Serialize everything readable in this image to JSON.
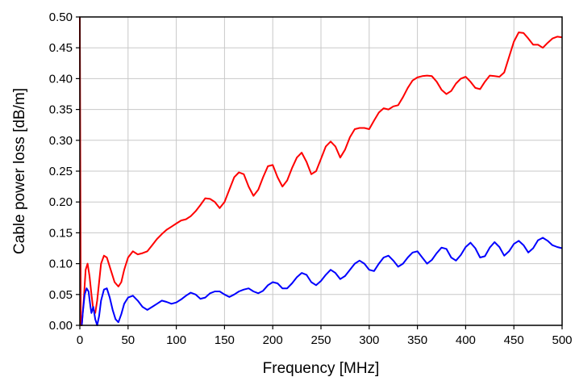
{
  "chart_data": {
    "type": "line",
    "title": "",
    "xlabel": "Frequency [MHz]",
    "ylabel": "Cable power loss [dB/m]",
    "xlim": [
      0,
      500
    ],
    "ylim": [
      0,
      0.5
    ],
    "x_ticks": [
      0,
      50,
      100,
      150,
      200,
      250,
      300,
      350,
      400,
      450,
      500
    ],
    "x_tick_labels": [
      "0",
      "50",
      "100",
      "150",
      "200",
      "250",
      "300",
      "350",
      "400",
      "450",
      "500"
    ],
    "y_ticks": [
      0,
      0.05,
      0.1,
      0.15,
      0.2,
      0.25,
      0.3,
      0.35,
      0.4,
      0.45,
      0.5
    ],
    "y_tick_labels": [
      "0.00",
      "0.05",
      "0.10",
      "0.15",
      "0.20",
      "0.25",
      "0.30",
      "0.35",
      "0.40",
      "0.45",
      "0.50"
    ],
    "grid": true,
    "legend": "none",
    "series": [
      {
        "color": "#ff0000",
        "x": [
          0,
          1,
          2,
          4,
          6,
          8,
          10,
          12,
          14,
          16,
          18,
          20,
          22,
          25,
          28,
          30,
          33,
          36,
          40,
          43,
          46,
          50,
          55,
          60,
          65,
          70,
          75,
          80,
          85,
          90,
          95,
          100,
          105,
          110,
          115,
          120,
          125,
          130,
          135,
          140,
          145,
          150,
          155,
          160,
          165,
          170,
          175,
          180,
          185,
          190,
          195,
          200,
          205,
          210,
          215,
          220,
          225,
          230,
          235,
          240,
          245,
          250,
          255,
          260,
          265,
          270,
          275,
          280,
          285,
          290,
          295,
          300,
          305,
          310,
          315,
          320,
          325,
          330,
          335,
          340,
          345,
          350,
          355,
          360,
          365,
          370,
          375,
          380,
          385,
          390,
          395,
          400,
          405,
          410,
          415,
          420,
          425,
          430,
          435,
          440,
          445,
          450,
          455,
          460,
          465,
          470,
          475,
          480,
          485,
          490,
          495,
          500
        ],
        "y": [
          0.5,
          0.0,
          0.0,
          0.04,
          0.09,
          0.1,
          0.08,
          0.05,
          0.025,
          0.02,
          0.04,
          0.07,
          0.1,
          0.113,
          0.11,
          0.1,
          0.085,
          0.07,
          0.063,
          0.07,
          0.09,
          0.11,
          0.12,
          0.115,
          0.117,
          0.12,
          0.13,
          0.14,
          0.148,
          0.155,
          0.16,
          0.165,
          0.17,
          0.172,
          0.177,
          0.185,
          0.195,
          0.206,
          0.205,
          0.2,
          0.19,
          0.2,
          0.22,
          0.24,
          0.248,
          0.245,
          0.225,
          0.21,
          0.22,
          0.24,
          0.258,
          0.26,
          0.24,
          0.225,
          0.235,
          0.255,
          0.272,
          0.28,
          0.265,
          0.245,
          0.25,
          0.27,
          0.29,
          0.298,
          0.29,
          0.272,
          0.285,
          0.305,
          0.318,
          0.32,
          0.32,
          0.318,
          0.332,
          0.345,
          0.352,
          0.35,
          0.355,
          0.357,
          0.37,
          0.385,
          0.397,
          0.402,
          0.404,
          0.405,
          0.404,
          0.395,
          0.382,
          0.375,
          0.38,
          0.392,
          0.4,
          0.403,
          0.395,
          0.385,
          0.383,
          0.395,
          0.405,
          0.404,
          0.403,
          0.41,
          0.435,
          0.46,
          0.475,
          0.474,
          0.465,
          0.455,
          0.455,
          0.45,
          0.458,
          0.465,
          0.468,
          0.467
        ]
      },
      {
        "color": "#0000ff",
        "x": [
          2,
          3,
          5,
          7,
          9,
          11,
          12,
          14,
          16,
          18,
          20,
          22,
          25,
          28,
          31,
          34,
          37,
          40,
          43,
          46,
          50,
          55,
          60,
          65,
          70,
          75,
          80,
          85,
          90,
          95,
          100,
          105,
          110,
          115,
          120,
          125,
          130,
          135,
          140,
          145,
          150,
          155,
          160,
          165,
          170,
          175,
          180,
          185,
          190,
          195,
          200,
          205,
          210,
          215,
          220,
          225,
          230,
          235,
          240,
          245,
          250,
          255,
          260,
          265,
          270,
          275,
          280,
          285,
          290,
          295,
          300,
          305,
          310,
          315,
          320,
          325,
          330,
          335,
          340,
          345,
          350,
          355,
          360,
          365,
          370,
          375,
          380,
          385,
          390,
          395,
          400,
          405,
          410,
          415,
          420,
          425,
          430,
          435,
          440,
          445,
          450,
          455,
          460,
          465,
          470,
          475,
          480,
          485,
          490,
          495,
          500
        ],
        "y": [
          0.0,
          0.02,
          0.05,
          0.06,
          0.055,
          0.03,
          0.02,
          0.03,
          0.01,
          0.0,
          0.015,
          0.04,
          0.058,
          0.06,
          0.045,
          0.025,
          0.01,
          0.005,
          0.018,
          0.035,
          0.045,
          0.048,
          0.04,
          0.03,
          0.025,
          0.03,
          0.035,
          0.04,
          0.038,
          0.035,
          0.037,
          0.042,
          0.048,
          0.053,
          0.05,
          0.043,
          0.045,
          0.052,
          0.055,
          0.055,
          0.05,
          0.046,
          0.05,
          0.055,
          0.058,
          0.06,
          0.055,
          0.052,
          0.056,
          0.065,
          0.07,
          0.068,
          0.06,
          0.06,
          0.068,
          0.078,
          0.085,
          0.082,
          0.07,
          0.065,
          0.072,
          0.082,
          0.09,
          0.085,
          0.075,
          0.08,
          0.09,
          0.1,
          0.105,
          0.1,
          0.09,
          0.088,
          0.1,
          0.11,
          0.113,
          0.105,
          0.095,
          0.1,
          0.11,
          0.118,
          0.12,
          0.11,
          0.1,
          0.106,
          0.117,
          0.126,
          0.124,
          0.11,
          0.105,
          0.114,
          0.127,
          0.134,
          0.125,
          0.11,
          0.112,
          0.126,
          0.135,
          0.127,
          0.113,
          0.12,
          0.132,
          0.137,
          0.13,
          0.118,
          0.125,
          0.138,
          0.142,
          0.137,
          0.13,
          0.127,
          0.125
        ]
      }
    ]
  }
}
